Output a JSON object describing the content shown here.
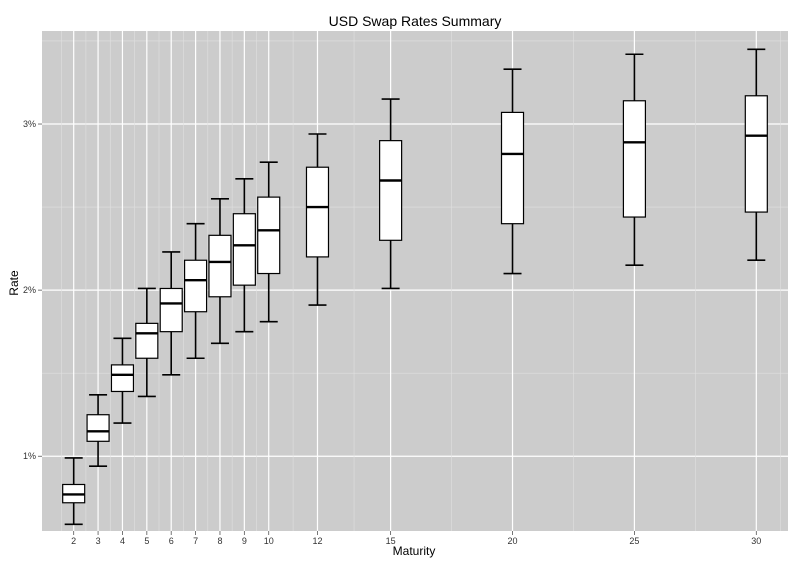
{
  "chart_data": {
    "type": "boxplot",
    "title": "USD Swap Rates Summary",
    "xlabel": "Maturity",
    "ylabel": "Rate",
    "x_scale": "linear",
    "xlim": [
      0.7,
      31.3
    ],
    "ylim": [
      0.55,
      3.56
    ],
    "y_ticks": [
      1,
      2,
      3
    ],
    "y_tick_labels": [
      "1%",
      "2%",
      "3%"
    ],
    "x_ticks": [
      2,
      3,
      4,
      5,
      6,
      7,
      8,
      9,
      10,
      12,
      15,
      20,
      25,
      30
    ],
    "x_tick_labels": [
      "2",
      "3",
      "4",
      "5",
      "6",
      "7",
      "8",
      "9",
      "10",
      "12",
      "15",
      "20",
      "25",
      "30"
    ],
    "grid": true,
    "colors": {
      "panel": "#cccccc",
      "grid": "#ffffff",
      "box_fill": "#ffffff",
      "box_stroke": "#000000"
    },
    "boxes": [
      {
        "maturity": 2,
        "min": 0.59,
        "q1": 0.72,
        "median": 0.77,
        "q3": 0.83,
        "max": 0.99
      },
      {
        "maturity": 3,
        "min": 0.94,
        "q1": 1.09,
        "median": 1.15,
        "q3": 1.25,
        "max": 1.37
      },
      {
        "maturity": 4,
        "min": 1.2,
        "q1": 1.39,
        "median": 1.49,
        "q3": 1.55,
        "max": 1.71
      },
      {
        "maturity": 5,
        "min": 1.36,
        "q1": 1.59,
        "median": 1.74,
        "q3": 1.8,
        "max": 2.01
      },
      {
        "maturity": 6,
        "min": 1.49,
        "q1": 1.75,
        "median": 1.92,
        "q3": 2.01,
        "max": 2.23
      },
      {
        "maturity": 7,
        "min": 1.59,
        "q1": 1.87,
        "median": 2.06,
        "q3": 2.18,
        "max": 2.4
      },
      {
        "maturity": 8,
        "min": 1.68,
        "q1": 1.96,
        "median": 2.17,
        "q3": 2.33,
        "max": 2.55
      },
      {
        "maturity": 9,
        "min": 1.75,
        "q1": 2.03,
        "median": 2.27,
        "q3": 2.46,
        "max": 2.67
      },
      {
        "maturity": 10,
        "min": 1.81,
        "q1": 2.1,
        "median": 2.36,
        "q3": 2.56,
        "max": 2.77
      },
      {
        "maturity": 12,
        "min": 1.91,
        "q1": 2.2,
        "median": 2.5,
        "q3": 2.74,
        "max": 2.94
      },
      {
        "maturity": 15,
        "min": 2.01,
        "q1": 2.3,
        "median": 2.66,
        "q3": 2.9,
        "max": 3.15
      },
      {
        "maturity": 20,
        "min": 2.1,
        "q1": 2.4,
        "median": 2.82,
        "q3": 3.07,
        "max": 3.33
      },
      {
        "maturity": 25,
        "min": 2.15,
        "q1": 2.44,
        "median": 2.89,
        "q3": 3.14,
        "max": 3.42
      },
      {
        "maturity": 30,
        "min": 2.18,
        "q1": 2.47,
        "median": 2.93,
        "q3": 3.17,
        "max": 3.45
      }
    ]
  }
}
